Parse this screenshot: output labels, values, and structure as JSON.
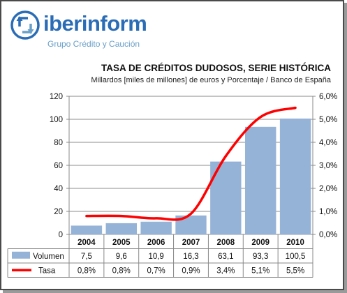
{
  "brand": {
    "name_part1": "iber",
    "name_part2": "inform",
    "tagline": "Grupo Crédito y Caución"
  },
  "chart_data": {
    "type": "bar",
    "title": "TASA DE CRÉDITOS DUDOSOS, SERIE HISTÓRICA",
    "subtitle": "Millardos [miles de millones] de euros y Porcentaje / Banco de España",
    "categories": [
      "2004",
      "2005",
      "2006",
      "2007",
      "2008",
      "2009",
      "2010"
    ],
    "ylim": [
      0,
      120
    ],
    "y_ticks": [
      "0",
      "20",
      "40",
      "60",
      "80",
      "100",
      "120"
    ],
    "y2lim": [
      0,
      6
    ],
    "y2_ticks": [
      "0,0%",
      "1,0%",
      "2,0%",
      "3,0%",
      "4,0%",
      "5,0%",
      "6,0%"
    ],
    "series": [
      {
        "name": "Volumen",
        "kind": "bar",
        "color": "#95b3d7",
        "values": [
          7.5,
          9.6,
          10.9,
          16.3,
          63.1,
          93.3,
          100.5
        ],
        "labels": [
          "7,5",
          "9,6",
          "10,9",
          "16,3",
          "63,1",
          "93,3",
          "100,5"
        ]
      },
      {
        "name": "Tasa",
        "kind": "line",
        "axis": "right",
        "color": "#ff0000",
        "values": [
          0.8,
          0.8,
          0.7,
          0.9,
          3.4,
          5.1,
          5.5
        ],
        "labels": [
          "0,8%",
          "0,8%",
          "0,7%",
          "0,9%",
          "3,4%",
          "5,1%",
          "5,5%"
        ]
      }
    ],
    "grid": true,
    "legend": "data-table"
  }
}
